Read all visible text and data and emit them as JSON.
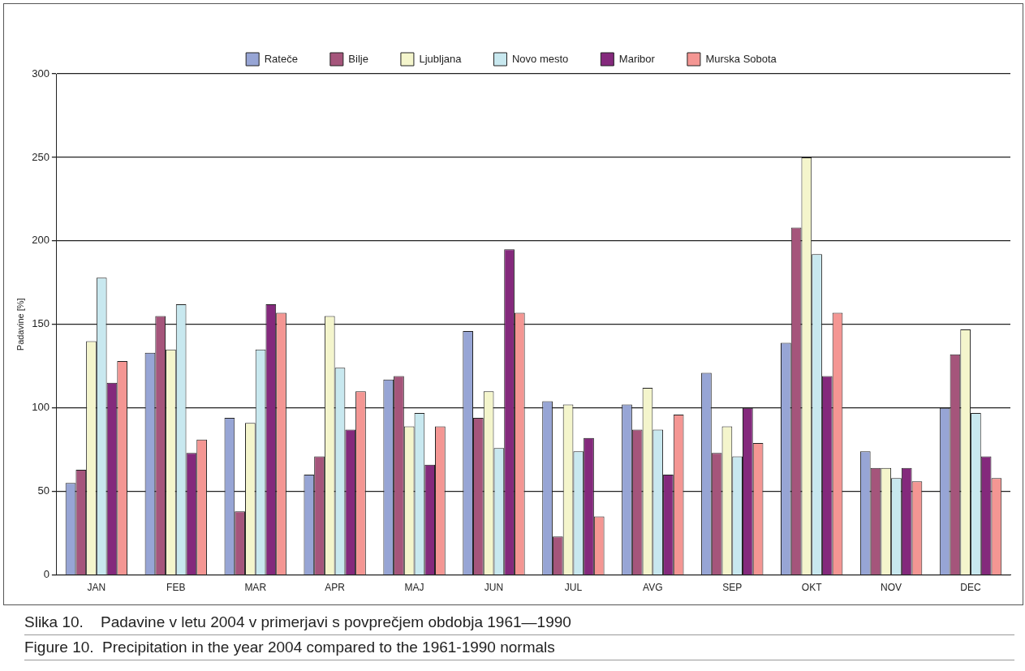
{
  "chart_data": {
    "type": "bar",
    "ylabel": "Padavine [%]",
    "categories": [
      "JAN",
      "FEB",
      "MAR",
      "APR",
      "MAJ",
      "JUN",
      "JUL",
      "AVG",
      "SEP",
      "OKT",
      "NOV",
      "DEC"
    ],
    "series": [
      {
        "name": "Rateče",
        "color": "#97a5d5",
        "values": [
          55,
          133,
          94,
          60,
          117,
          146,
          104,
          102,
          121,
          139,
          74,
          100
        ]
      },
      {
        "name": "Bilje",
        "color": "#a5557b",
        "values": [
          63,
          155,
          38,
          71,
          119,
          94,
          23,
          87,
          73,
          208,
          64,
          132
        ]
      },
      {
        "name": "Ljubljana",
        "color": "#f4f5cc",
        "values": [
          140,
          135,
          91,
          155,
          89,
          110,
          102,
          112,
          89,
          250,
          64,
          147
        ]
      },
      {
        "name": "Novo mesto",
        "color": "#c8e8ef",
        "values": [
          178,
          162,
          135,
          124,
          97,
          76,
          74,
          87,
          71,
          192,
          58,
          97
        ]
      },
      {
        "name": "Maribor",
        "color": "#84297c",
        "values": [
          115,
          73,
          162,
          87,
          66,
          195,
          82,
          60,
          100,
          119,
          64,
          71
        ]
      },
      {
        "name": "Murska Sobota",
        "color": "#f49693",
        "values": [
          128,
          81,
          157,
          110,
          89,
          157,
          35,
          96,
          79,
          157,
          56,
          58
        ]
      }
    ],
    "ylim": [
      0,
      300
    ],
    "yticks": [
      0,
      50,
      100,
      150,
      200,
      250,
      300
    ],
    "grid": "y",
    "legend": "top",
    "annotations": [
      "Slika 10.    Padavine v letu 2004 v primerjavi s povprečjem obdobja 1961—1990",
      "Figure 10.  Precipitation in the year 2004 compared to the 1961-1990 normals"
    ]
  }
}
